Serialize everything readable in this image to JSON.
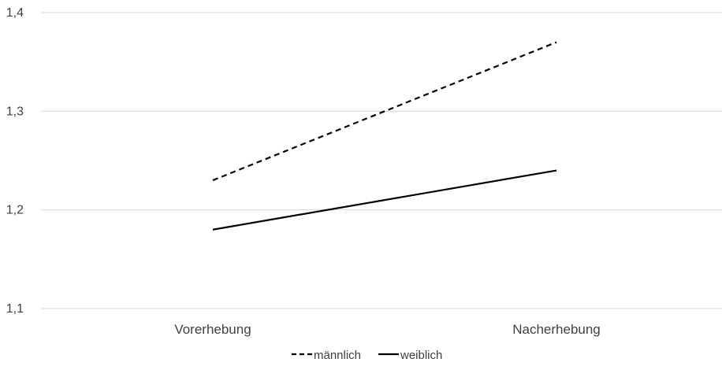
{
  "chart_data": {
    "type": "line",
    "categories": [
      "Vorerhebung",
      "Nacherhebung"
    ],
    "series": [
      {
        "name": "männlich",
        "values": [
          1.23,
          1.37
        ],
        "color": "#000000",
        "line_style": "dashed"
      },
      {
        "name": "weiblich",
        "values": [
          1.18,
          1.24
        ],
        "color": "#000000",
        "line_style": "solid"
      }
    ],
    "y_ticks": [
      1.1,
      1.2,
      1.3,
      1.4
    ],
    "y_tick_labels": [
      "1,1",
      "1,2",
      "1,3",
      "1,4"
    ],
    "ylim": [
      1.1,
      1.4
    ],
    "grid": true,
    "grid_color": "#d9d9d9",
    "legend_position": "bottom"
  }
}
